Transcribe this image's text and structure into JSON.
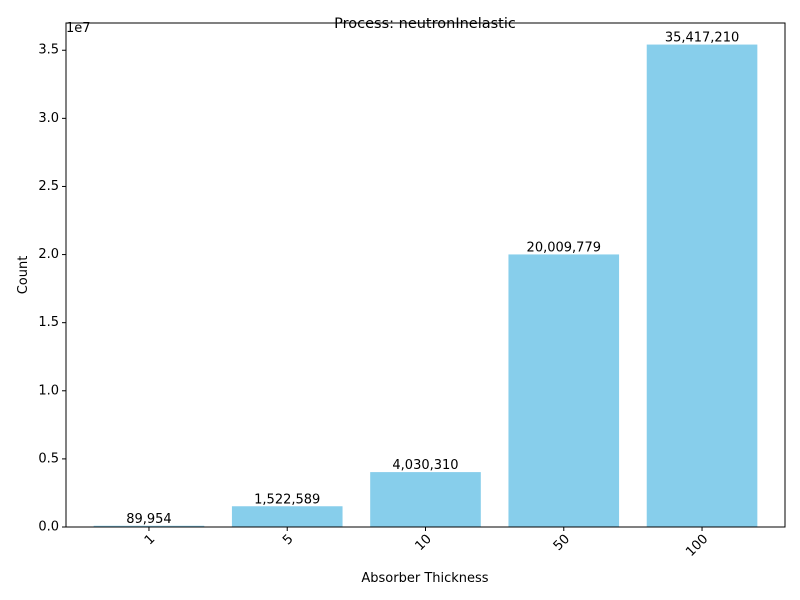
{
  "chart_data": {
    "type": "bar",
    "title": "Process: neutronInelastic",
    "xlabel": "Absorber Thickness",
    "ylabel": "Count",
    "offset_label": "1e7",
    "categories": [
      "1",
      "5",
      "10",
      "50",
      "100"
    ],
    "values": [
      89954,
      1522589,
      4030310,
      20009779,
      35417210
    ],
    "value_labels": [
      "89,954",
      "1,522,589",
      "4,030,310",
      "20,009,779",
      "35,417,210"
    ],
    "ylim": [
      0,
      37000000
    ],
    "yticks": [
      0,
      5000000,
      10000000,
      15000000,
      20000000,
      25000000,
      30000000,
      35000000
    ],
    "ytick_labels": [
      "0.0",
      "0.5",
      "1.0",
      "1.5",
      "2.0",
      "2.5",
      "3.0",
      "3.5"
    ],
    "bar_color": "#87ceeb",
    "grid": false,
    "xtick_rotation_deg": 45
  }
}
